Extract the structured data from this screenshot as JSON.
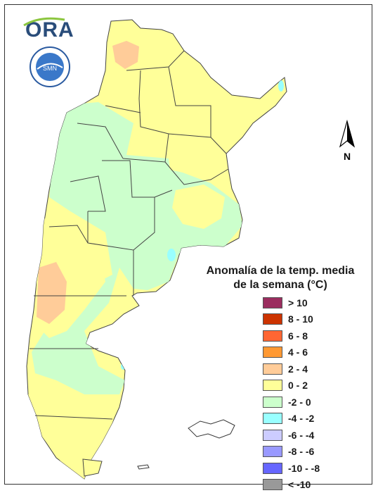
{
  "logo": {
    "text": "ORA"
  },
  "seal": {
    "outer_text": "SERVICIO METEOROLOGICO NACIONAL",
    "bottom_text": "ARGENTINA",
    "center_text": "SMN"
  },
  "compass": {
    "label": "N"
  },
  "title": {
    "line1": "Anomalía de la temp. media",
    "line2": "de la semana (°C)"
  },
  "legend": [
    {
      "label": "> 10",
      "color": "#9b2d5f"
    },
    {
      "label": "8 - 10",
      "color": "#cc3300"
    },
    {
      "label": "6 - 8",
      "color": "#ff6633"
    },
    {
      "label": "4 - 6",
      "color": "#ff9933"
    },
    {
      "label": "2 - 4",
      "color": "#ffcc99"
    },
    {
      "label": "0 - 2",
      "color": "#ffff99"
    },
    {
      "label": "-2 - 0",
      "color": "#ccffcc"
    },
    {
      "label": "-4 - -2",
      "color": "#99ffff"
    },
    {
      "label": "-6 - -4",
      "color": "#ccccff"
    },
    {
      "label": "-8 - -6",
      "color": "#9999ff"
    },
    {
      "label": "-10 - -8",
      "color": "#6666ff"
    },
    {
      "label": "< -10",
      "color": "#999999"
    }
  ]
}
